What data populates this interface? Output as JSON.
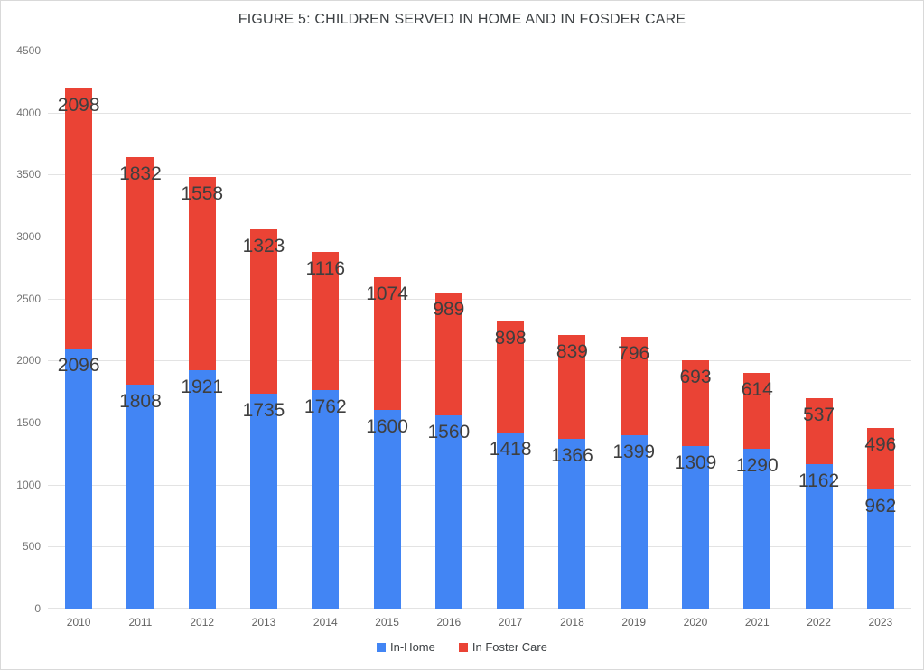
{
  "chart_data": {
    "type": "bar",
    "stacked": true,
    "title": "FIGURE 5: CHILDREN SERVED IN HOME AND IN FOSDER CARE",
    "categories": [
      "2010",
      "2011",
      "2012",
      "2013",
      "2014",
      "2015",
      "2016",
      "2017",
      "2018",
      "2019",
      "2020",
      "2021",
      "2022",
      "2023"
    ],
    "series": [
      {
        "name": "In-Home",
        "color": "#4285F4",
        "values": [
          2096,
          1808,
          1921,
          1735,
          1762,
          1600,
          1560,
          1418,
          1366,
          1399,
          1309,
          1290,
          1162,
          962
        ]
      },
      {
        "name": "In Foster Care",
        "color": "#EA4335",
        "values": [
          2098,
          1832,
          1558,
          1323,
          1116,
          1074,
          989,
          898,
          839,
          796,
          693,
          614,
          537,
          496
        ]
      }
    ],
    "xlabel": "",
    "ylabel": "",
    "ylim": [
      0,
      4500
    ],
    "yticks": [
      0,
      500,
      1000,
      1500,
      2000,
      2500,
      3000,
      3500,
      4000,
      4500
    ],
    "grid": true,
    "legend_position": "bottom",
    "data_labels_shown": true,
    "data_label_color": "#3f3f3f",
    "axis_label_color": "#757575",
    "gridline_color": "#e3e3e3",
    "background_color": "#ffffff"
  }
}
